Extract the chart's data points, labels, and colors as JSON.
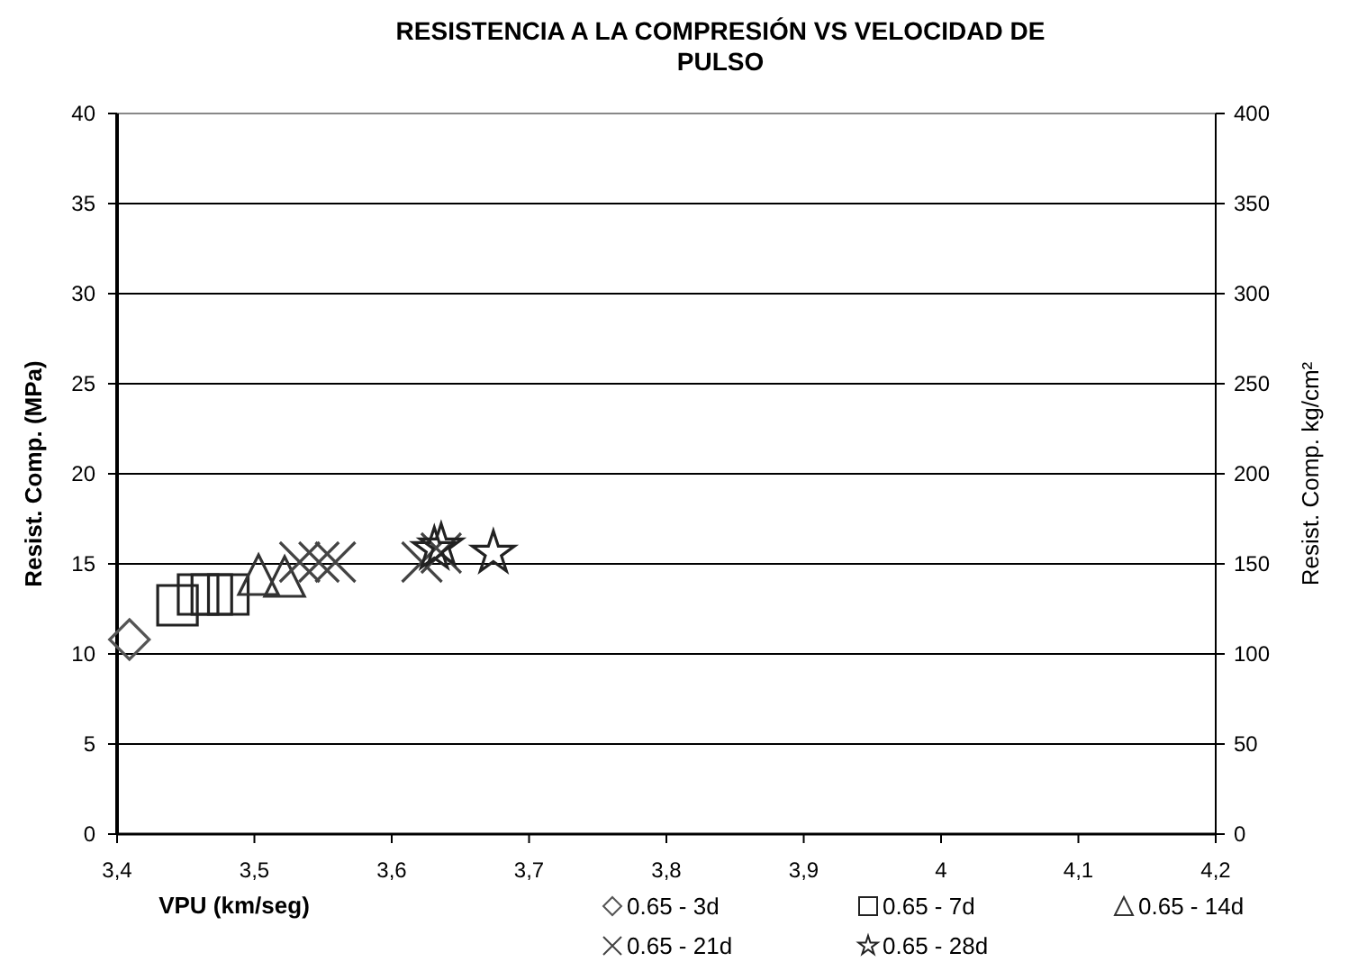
{
  "chart_data": {
    "type": "scatter",
    "title": "RESISTENCIA A LA COMPRESIÓN VS VELOCIDAD DE PULSO",
    "xlabel": "VPU (km/seg)",
    "ylabel": "Resist. Comp. (MPa)",
    "y2label": "Resist. Comp. kg/cm²",
    "xlim": [
      3.4,
      4.2
    ],
    "xticks": [
      {
        "value": 3.4,
        "label": "3,4"
      },
      {
        "value": 3.5,
        "label": "3,5"
      },
      {
        "value": 3.6,
        "label": "3,6"
      },
      {
        "value": 3.7,
        "label": "3,7"
      },
      {
        "value": 3.8,
        "label": "3,8"
      },
      {
        "value": 3.9,
        "label": "3,9"
      },
      4,
      {
        "value": 4.1,
        "label": "4,1"
      },
      {
        "value": 4.2,
        "label": "4,2"
      }
    ],
    "ylim": [
      0,
      40
    ],
    "yticks": [
      0,
      5,
      10,
      15,
      20,
      25,
      30,
      35,
      40
    ],
    "y2lim": [
      0,
      400
    ],
    "y2ticks": [
      0,
      50,
      100,
      150,
      200,
      250,
      300,
      350,
      400
    ],
    "grid": "y",
    "legend": "bottom",
    "series": [
      {
        "name": "0.65 - 3d",
        "color": "#555555",
        "marker": "diamond",
        "x": [
          3.409
        ],
        "values": [
          10.8
        ]
      },
      {
        "name": "0.65 - 7d",
        "color": "#222222",
        "marker": "square",
        "x": [
          3.444,
          3.459,
          3.469,
          3.481
        ],
        "values": [
          12.7,
          13.3,
          13.3,
          13.3
        ]
      },
      {
        "name": "0.65 - 14d",
        "color": "#333333",
        "marker": "triangle",
        "x": [
          3.503,
          3.522
        ],
        "values": [
          14.4,
          14.3
        ]
      },
      {
        "name": "0.65 - 21d",
        "color": "#444444",
        "marker": "cross",
        "x": [
          3.533,
          3.547,
          3.559,
          3.622,
          3.636
        ],
        "values": [
          15.1,
          15.1,
          15.1,
          15.1,
          15.6
        ]
      },
      {
        "name": "0.65 - 28d",
        "color": "#222222",
        "marker": "star",
        "x": [
          3.631,
          3.636,
          3.674
        ],
        "values": [
          15.8,
          16.0,
          15.6
        ]
      }
    ]
  }
}
